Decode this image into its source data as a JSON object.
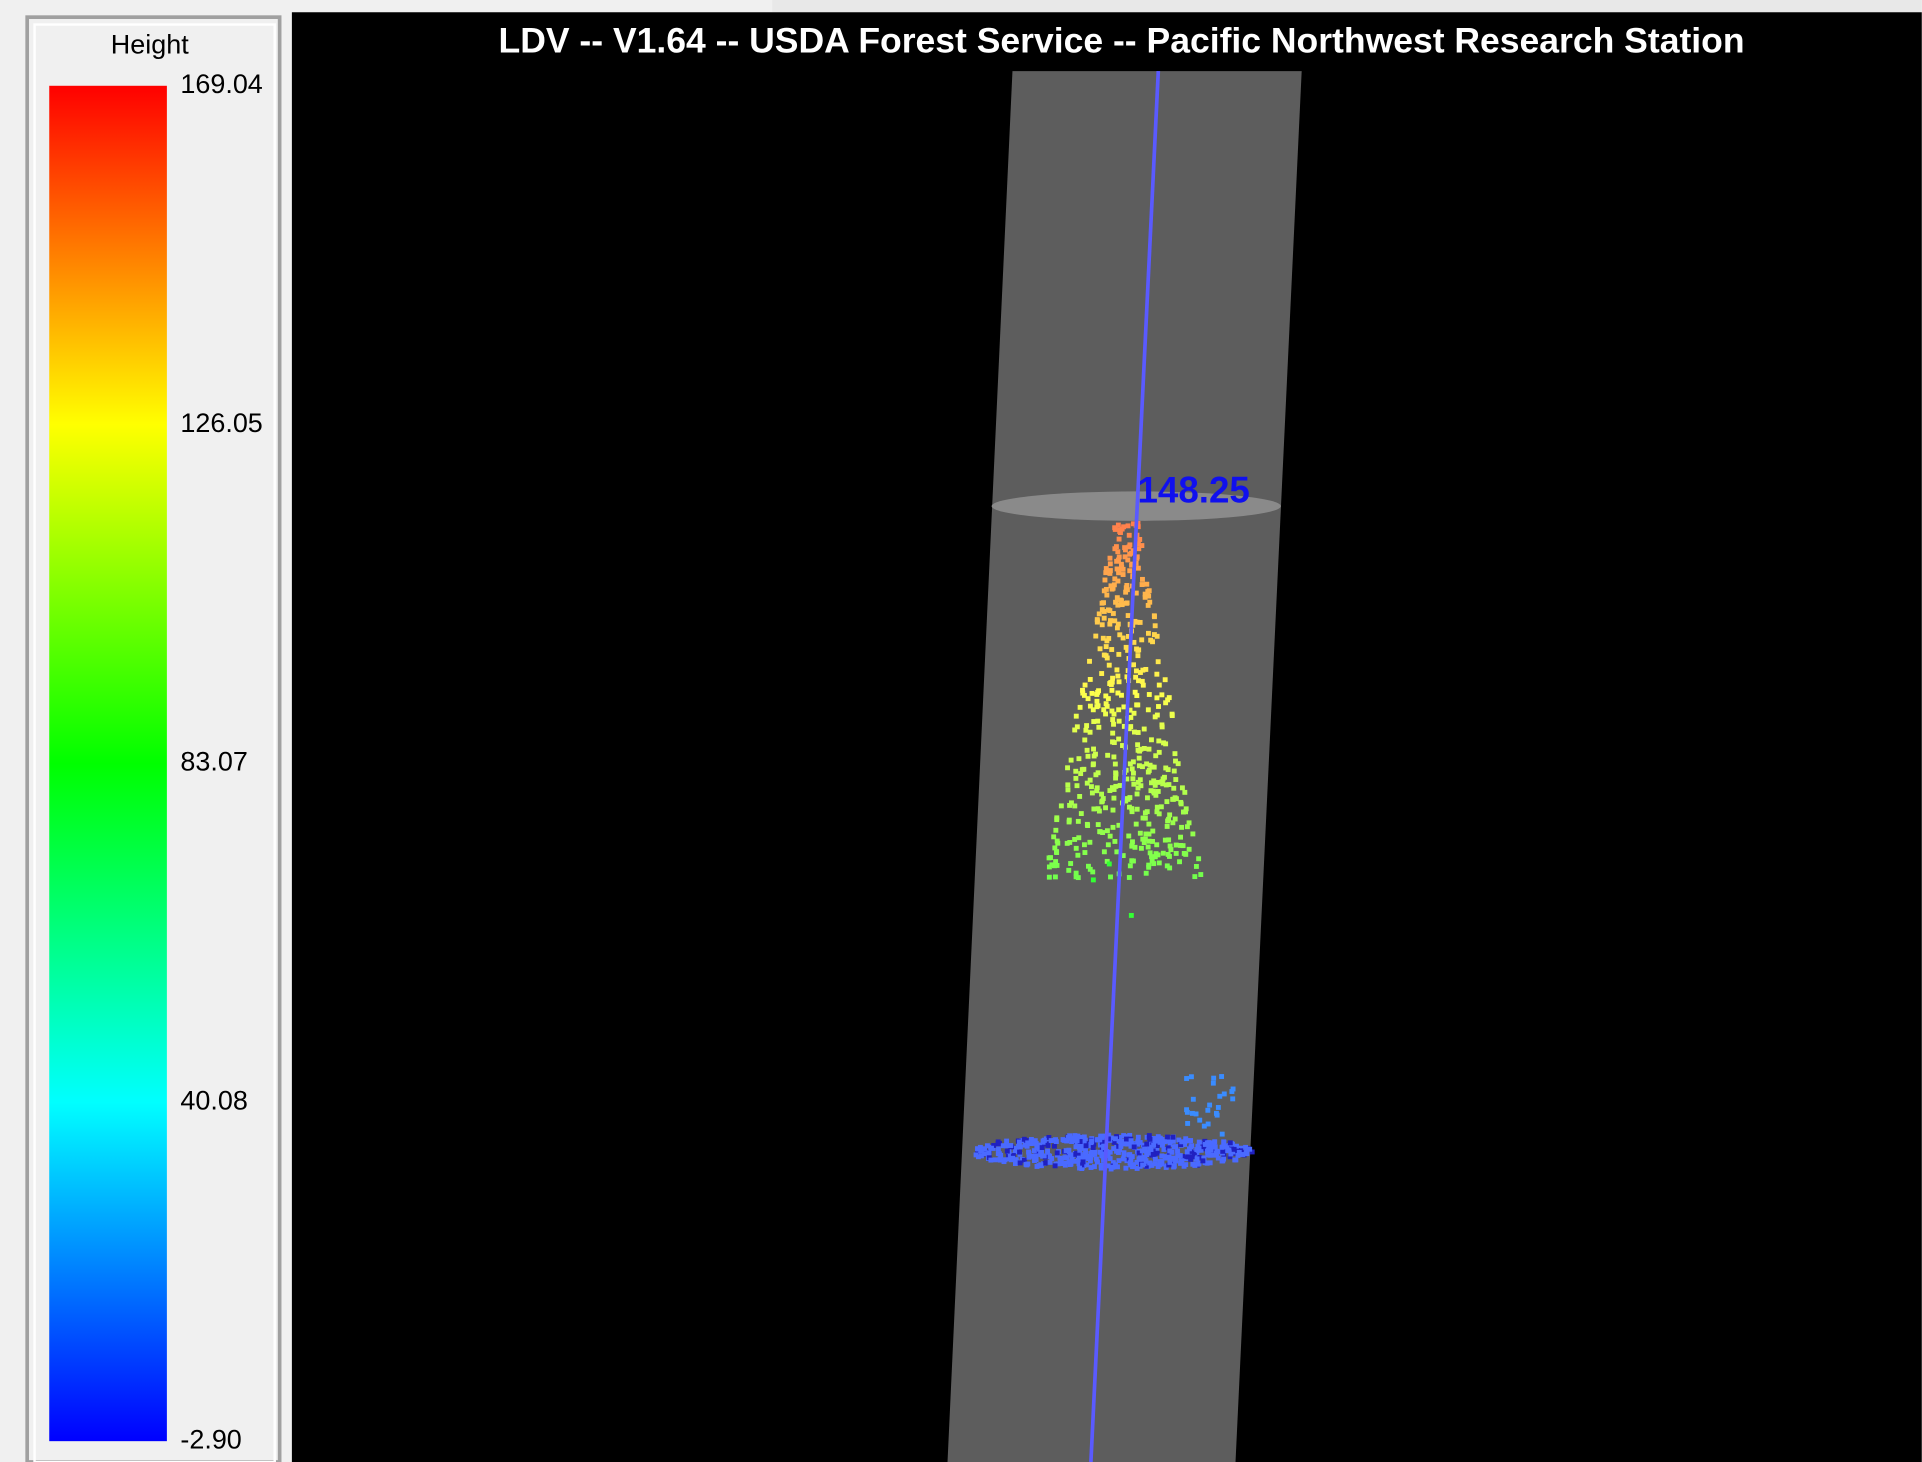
{
  "window": {
    "title": "LDV -- V1.64 -- USDA Forest Service -- Pacific Northwest Research Station"
  },
  "legend": {
    "title": "Height",
    "labels": [
      "169.04",
      "126.05",
      "83.07",
      "40.08",
      "-2.90"
    ]
  },
  "viewport": {
    "annotation": "148.25"
  }
}
